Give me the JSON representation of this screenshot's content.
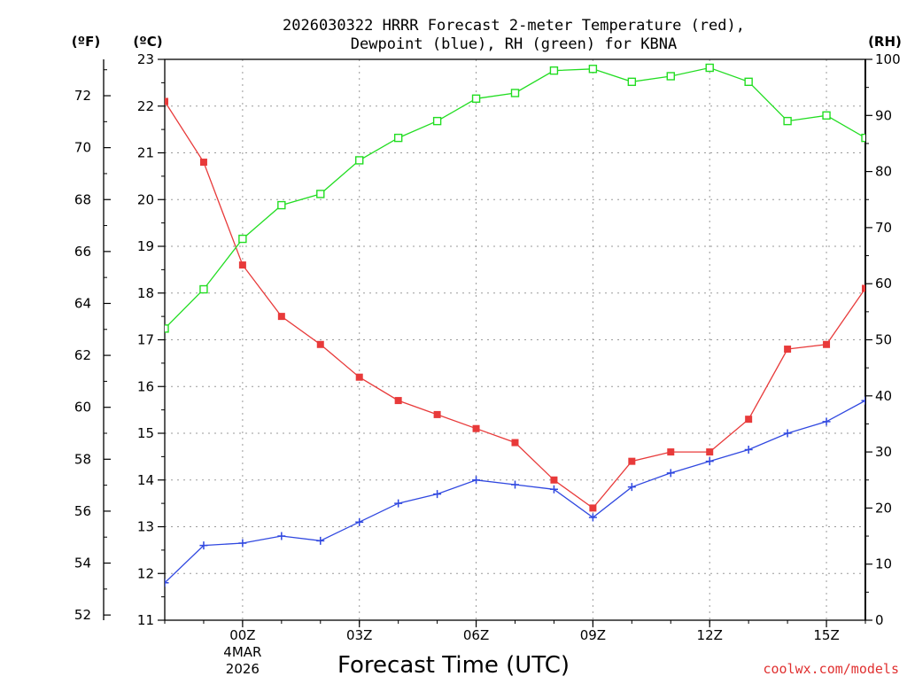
{
  "chart_data": {
    "type": "line",
    "title_line1": "2026030322 HRRR Forecast 2-meter Temperature (red),",
    "title_line2": "Dewpoint (blue), RH (green) for KBNA",
    "xlabel": "Forecast Time (UTC)",
    "credit": "coolwx.com/models",
    "axis_units": {
      "f": "(ºF)",
      "c": "(ºC)",
      "rh": "(RH)"
    },
    "x_hours": [
      -2,
      -1,
      0,
      1,
      2,
      3,
      4,
      5,
      6,
      7,
      8,
      9,
      10,
      11,
      12,
      13,
      14,
      15,
      16
    ],
    "x_ticks": [
      {
        "hour": 0,
        "label": "00Z",
        "sub1": "4MAR",
        "sub2": "2026"
      },
      {
        "hour": 3,
        "label": "03Z"
      },
      {
        "hour": 6,
        "label": "06Z"
      },
      {
        "hour": 9,
        "label": "09Z"
      },
      {
        "hour": 12,
        "label": "12Z"
      },
      {
        "hour": 15,
        "label": "15Z"
      }
    ],
    "c_axis": {
      "min": 11,
      "max": 23,
      "ticks": [
        "11",
        "12",
        "13",
        "14",
        "15",
        "16",
        "17",
        "18",
        "19",
        "20",
        "21",
        "22",
        "23"
      ]
    },
    "f_ticks": [
      "52",
      "54",
      "56",
      "58",
      "60",
      "62",
      "64",
      "66",
      "68",
      "70",
      "72"
    ],
    "rh_axis": {
      "min": 0,
      "max": 100,
      "ticks": [
        "0",
        "10",
        "20",
        "30",
        "40",
        "50",
        "60",
        "70",
        "80",
        "90",
        "100"
      ]
    },
    "series": [
      {
        "name": "Temperature",
        "units": "C",
        "color": "#e83a3a",
        "marker": "filled-square",
        "values": [
          22.1,
          20.8,
          18.6,
          17.5,
          16.9,
          16.2,
          15.7,
          15.4,
          15.1,
          14.8,
          14.0,
          13.4,
          14.4,
          14.6,
          14.6,
          15.3,
          16.8,
          16.9,
          18.1
        ]
      },
      {
        "name": "Dewpoint",
        "units": "C",
        "color": "#3048e0",
        "marker": "plus",
        "values": [
          11.8,
          12.6,
          12.65,
          12.8,
          12.7,
          13.1,
          13.5,
          13.7,
          14.0,
          13.9,
          13.8,
          13.2,
          13.85,
          14.15,
          14.4,
          14.65,
          15.0,
          15.25,
          15.7
        ]
      },
      {
        "name": "RH",
        "units": "%",
        "color": "#22dd22",
        "marker": "open-square",
        "values": [
          52,
          59,
          68,
          74,
          76,
          82,
          86,
          89,
          93,
          94,
          98,
          98.3,
          96,
          97,
          98.5,
          96,
          89,
          90,
          86
        ]
      }
    ]
  }
}
